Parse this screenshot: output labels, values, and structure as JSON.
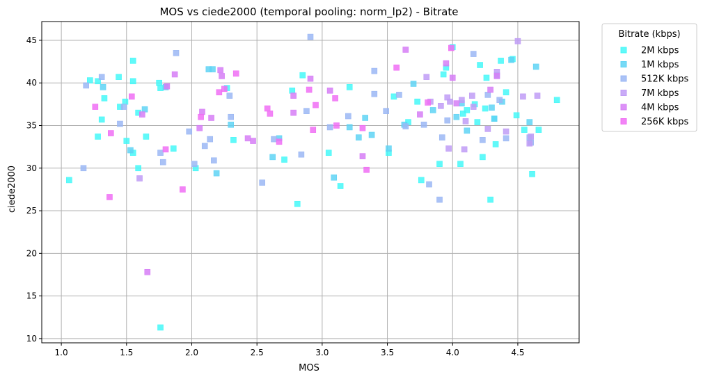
{
  "chart_data": {
    "type": "scatter",
    "title": "MOS vs ciede2000 (temporal pooling: norm_lp2) - Bitrate",
    "xlabel": "MOS",
    "ylabel": "ciede2000",
    "xlim": [
      0.85,
      4.97
    ],
    "ylim": [
      9.5,
      47.2
    ],
    "xticks": [
      "1.0",
      "1.5",
      "2.0",
      "2.5",
      "3.0",
      "3.5",
      "4.0",
      "4.5"
    ],
    "yticks": [
      "10",
      "15",
      "20",
      "25",
      "30",
      "35",
      "40",
      "45"
    ],
    "grid": true,
    "legend": {
      "title": "Bitrate (kbps)",
      "placement": "outside-top-right"
    },
    "series": [
      {
        "name": "2M kbps",
        "color": "#45f8f8",
        "points": [
          [
            1.06,
            28.6
          ],
          [
            1.22,
            40.3
          ],
          [
            1.28,
            40.2
          ],
          [
            1.28,
            33.7
          ],
          [
            1.31,
            35.7
          ],
          [
            1.33,
            38.2
          ],
          [
            1.44,
            40.7
          ],
          [
            1.45,
            37.2
          ],
          [
            1.49,
            37.8
          ],
          [
            1.5,
            33.2
          ],
          [
            1.55,
            42.6
          ],
          [
            1.55,
            40.2
          ],
          [
            1.55,
            31.8
          ],
          [
            1.59,
            30.0
          ],
          [
            1.59,
            36.5
          ],
          [
            1.65,
            33.7
          ],
          [
            1.75,
            40.0
          ],
          [
            1.76,
            39.4
          ],
          [
            1.76,
            11.3
          ],
          [
            1.86,
            32.3
          ],
          [
            2.03,
            30.0
          ],
          [
            2.27,
            39.4
          ],
          [
            2.32,
            33.3
          ],
          [
            2.71,
            31.0
          ],
          [
            2.77,
            39.1
          ],
          [
            2.81,
            25.8
          ],
          [
            2.85,
            40.9
          ],
          [
            3.05,
            31.8
          ],
          [
            3.14,
            27.9
          ],
          [
            3.21,
            39.5
          ],
          [
            3.51,
            31.8
          ],
          [
            3.55,
            38.4
          ],
          [
            3.66,
            35.4
          ],
          [
            3.73,
            37.8
          ],
          [
            3.76,
            28.6
          ],
          [
            3.9,
            30.5
          ],
          [
            3.93,
            41.0
          ],
          [
            3.95,
            41.8
          ],
          [
            4.0,
            44.2
          ],
          [
            4.06,
            30.5
          ],
          [
            4.08,
            36.4
          ],
          [
            4.11,
            36.8
          ],
          [
            4.17,
            37.5
          ],
          [
            4.19,
            35.4
          ],
          [
            4.21,
            42.1
          ],
          [
            4.23,
            31.3
          ],
          [
            4.25,
            37.0
          ],
          [
            4.26,
            40.6
          ],
          [
            4.29,
            26.3
          ],
          [
            4.32,
            35.8
          ],
          [
            4.33,
            32.8
          ],
          [
            4.37,
            42.6
          ],
          [
            4.41,
            38.9
          ],
          [
            4.46,
            42.8
          ],
          [
            4.49,
            36.2
          ],
          [
            4.55,
            34.5
          ],
          [
            4.61,
            29.3
          ],
          [
            4.66,
            34.5
          ],
          [
            4.8,
            38.0
          ]
        ]
      },
      {
        "name": "1M kbps",
        "color": "#5fd3f4",
        "points": [
          [
            1.32,
            39.5
          ],
          [
            1.53,
            32.1
          ],
          [
            1.64,
            36.9
          ],
          [
            1.8,
            39.5
          ],
          [
            2.13,
            41.6
          ],
          [
            2.16,
            41.6
          ],
          [
            2.19,
            29.4
          ],
          [
            2.3,
            35.1
          ],
          [
            2.62,
            31.3
          ],
          [
            2.67,
            33.5
          ],
          [
            3.09,
            28.9
          ],
          [
            3.21,
            34.8
          ],
          [
            3.28,
            33.6
          ],
          [
            3.33,
            35.9
          ],
          [
            3.38,
            33.9
          ],
          [
            3.51,
            32.3
          ],
          [
            3.63,
            35.1
          ],
          [
            3.7,
            39.9
          ],
          [
            3.85,
            36.8
          ],
          [
            4.03,
            36.0
          ],
          [
            4.07,
            37.6
          ],
          [
            4.11,
            34.4
          ],
          [
            4.3,
            37.1
          ],
          [
            4.32,
            35.8
          ],
          [
            4.38,
            37.8
          ],
          [
            4.45,
            42.7
          ],
          [
            4.59,
            35.4
          ],
          [
            4.64,
            41.9
          ]
        ]
      },
      {
        "name": "512K kbps",
        "color": "#9bb7f4",
        "points": [
          [
            1.17,
            30.0
          ],
          [
            1.19,
            39.7
          ],
          [
            1.31,
            40.7
          ],
          [
            1.45,
            35.2
          ],
          [
            1.48,
            37.2
          ],
          [
            1.76,
            31.8
          ],
          [
            1.78,
            30.7
          ],
          [
            1.88,
            43.5
          ],
          [
            1.98,
            34.3
          ],
          [
            2.02,
            30.5
          ],
          [
            2.1,
            32.6
          ],
          [
            2.14,
            33.4
          ],
          [
            2.17,
            30.9
          ],
          [
            2.29,
            38.5
          ],
          [
            2.3,
            36.0
          ],
          [
            2.54,
            28.3
          ],
          [
            2.63,
            33.4
          ],
          [
            2.84,
            31.6
          ],
          [
            2.88,
            36.7
          ],
          [
            2.91,
            45.4
          ],
          [
            3.06,
            34.8
          ],
          [
            3.2,
            36.1
          ],
          [
            3.4,
            38.7
          ],
          [
            3.4,
            41.4
          ],
          [
            3.49,
            36.7
          ],
          [
            3.59,
            38.6
          ],
          [
            3.64,
            34.9
          ],
          [
            3.78,
            35.1
          ],
          [
            3.82,
            28.1
          ],
          [
            3.9,
            26.3
          ],
          [
            3.92,
            33.6
          ],
          [
            3.96,
            35.6
          ],
          [
            4.16,
            43.4
          ],
          [
            4.23,
            33.3
          ],
          [
            4.27,
            38.6
          ],
          [
            4.34,
            40.9
          ],
          [
            4.36,
            38.0
          ],
          [
            4.41,
            33.5
          ],
          [
            4.59,
            33.6
          ],
          [
            4.6,
            33.0
          ]
        ]
      },
      {
        "name": "7M kbps",
        "color": "#c09cf6",
        "points": [
          [
            1.6,
            28.8
          ],
          [
            3.8,
            40.7
          ],
          [
            3.83,
            37.8
          ],
          [
            3.91,
            37.3
          ],
          [
            3.96,
            38.3
          ],
          [
            3.97,
            32.3
          ],
          [
            3.98,
            37.8
          ],
          [
            4.07,
            38.0
          ],
          [
            4.09,
            32.2
          ],
          [
            4.1,
            35.5
          ],
          [
            4.15,
            38.5
          ],
          [
            4.16,
            37.2
          ],
          [
            4.27,
            34.6
          ],
          [
            4.34,
            41.3
          ],
          [
            4.41,
            34.3
          ],
          [
            4.5,
            44.9
          ],
          [
            4.54,
            38.4
          ],
          [
            4.59,
            32.9
          ],
          [
            4.6,
            33.7
          ],
          [
            4.65,
            38.5
          ]
        ]
      },
      {
        "name": "4M kbps",
        "color": "#d67ef6",
        "points": [
          [
            1.62,
            36.3
          ],
          [
            1.66,
            17.8
          ],
          [
            1.81,
            39.6
          ],
          [
            1.87,
            41.0
          ],
          [
            2.06,
            34.7
          ],
          [
            2.08,
            36.6
          ],
          [
            2.15,
            35.9
          ],
          [
            2.22,
            41.5
          ],
          [
            2.23,
            40.8
          ],
          [
            2.43,
            33.5
          ],
          [
            2.47,
            33.2
          ],
          [
            2.78,
            38.5
          ],
          [
            2.78,
            36.5
          ],
          [
            2.91,
            40.5
          ],
          [
            3.06,
            39.1
          ],
          [
            3.31,
            31.4
          ],
          [
            3.64,
            43.9
          ],
          [
            3.75,
            36.3
          ],
          [
            3.95,
            42.3
          ],
          [
            4.0,
            40.6
          ],
          [
            4.03,
            37.6
          ],
          [
            4.29,
            39.2
          ],
          [
            4.34,
            40.8
          ]
        ]
      },
      {
        "name": "256K kbps",
        "color": "#f06ef4",
        "points": [
          [
            1.26,
            37.2
          ],
          [
            1.37,
            26.6
          ],
          [
            1.38,
            34.1
          ],
          [
            1.54,
            38.4
          ],
          [
            1.8,
            32.2
          ],
          [
            1.93,
            27.5
          ],
          [
            2.07,
            36.0
          ],
          [
            2.21,
            38.9
          ],
          [
            2.25,
            39.3
          ],
          [
            2.34,
            41.1
          ],
          [
            2.58,
            37.0
          ],
          [
            2.6,
            36.4
          ],
          [
            2.67,
            33.1
          ],
          [
            2.9,
            39.2
          ],
          [
            2.93,
            34.5
          ],
          [
            2.95,
            37.4
          ],
          [
            3.1,
            38.2
          ],
          [
            3.11,
            35.0
          ],
          [
            3.31,
            34.7
          ],
          [
            3.34,
            29.8
          ],
          [
            3.57,
            41.8
          ],
          [
            3.81,
            37.7
          ],
          [
            3.99,
            44.1
          ]
        ]
      }
    ]
  }
}
